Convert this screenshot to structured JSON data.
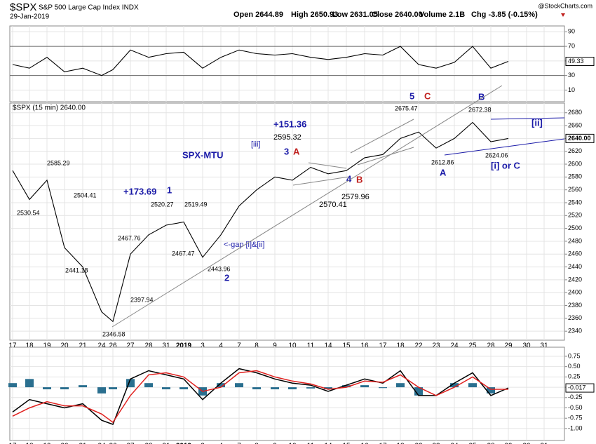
{
  "header": {
    "symbol": "$SPX",
    "name": "S&P 500 Large Cap Index INDX",
    "date": "29-Jan-2019",
    "quote": [
      "Open 2644.89",
      "High 2650.93",
      "Low 2631.05",
      "Close 2640.00",
      "Volume 2.1B",
      "Chg -3.85 (-0.15%)"
    ],
    "watermark": "@StockCharts.com"
  },
  "chart_data": [
    {
      "type": "line",
      "color": "#000000",
      "ylim": [
        -6,
        98
      ],
      "yticks": [
        10,
        30,
        50,
        70,
        90
      ],
      "grid": true,
      "values": [
        45,
        40,
        55,
        35,
        40,
        30,
        38,
        65,
        55,
        60,
        62,
        40,
        55,
        65,
        60,
        58,
        60,
        55,
        52,
        55,
        60,
        58,
        70,
        45,
        40,
        48,
        70,
        40,
        49.33,
        null,
        null
      ],
      "current": 49.33
    },
    {
      "type": "line",
      "label": "$SPX (15 min) 2640.00",
      "color": "#000000",
      "ylim": [
        2326,
        2695
      ],
      "yticks": [
        2340,
        2360,
        2380,
        2400,
        2420,
        2440,
        2460,
        2480,
        2500,
        2520,
        2540,
        2560,
        2580,
        2600,
        2620,
        2640,
        2660,
        2680
      ],
      "grid": true,
      "categories": [
        "17",
        "18",
        "19",
        "20",
        "21",
        "24",
        "26",
        "27",
        "28",
        "31",
        "2019",
        "3",
        "4",
        "7",
        "8",
        "9",
        "10",
        "11",
        "14",
        "15",
        "16",
        "17",
        "18",
        "22",
        "23",
        "24",
        "25",
        "28",
        "29",
        "30",
        "31"
      ],
      "values": [
        2590,
        2545,
        2575,
        2470,
        2440,
        2370,
        2355,
        2460,
        2490,
        2505,
        2510,
        2455,
        2490,
        2535,
        2560,
        2580,
        2575,
        2595,
        2585,
        2590,
        2610,
        2615,
        2640,
        2650,
        2625,
        2640,
        2665,
        2635,
        2640,
        null,
        null
      ],
      "current": {
        "value": 2640,
        "label": "2640.00"
      },
      "annotations": [
        {
          "text": "2585.29",
          "color": "#000000"
        },
        {
          "text": "2530.54",
          "color": "#000000"
        },
        {
          "text": "2504.41",
          "color": "#000000"
        },
        {
          "text": "2441.18",
          "color": "#000000"
        },
        {
          "text": "2467.76",
          "color": "#000000"
        },
        {
          "text": "2397.94",
          "color": "#000000"
        },
        {
          "text": "2346.58",
          "color": "#000000"
        },
        {
          "text": "2520.27",
          "color": "#000000"
        },
        {
          "text": "2519.49",
          "color": "#000000"
        },
        {
          "text": "2467.47",
          "color": "#000000"
        },
        {
          "text": "2443.96",
          "color": "#000000"
        },
        {
          "text": "+173.69",
          "color": "#1a1aa8"
        },
        {
          "text": "1",
          "color": "#1a1aa8"
        },
        {
          "text": "SPX-MTU",
          "color": "#1a1aa8"
        },
        {
          "text": "2",
          "color": "#1a1aa8"
        },
        {
          "text": "<-gap [i]&[ii]",
          "color": "#1a1aa8"
        },
        {
          "text": "[iii]",
          "color": "#1a1aa8"
        },
        {
          "text": "+151.36",
          "color": "#1a1aa8"
        },
        {
          "text": "2595.32",
          "color": "#000000"
        },
        {
          "text": "3",
          "color": "#1a1aa8"
        },
        {
          "text": "A",
          "color": "#c0201e"
        },
        {
          "text": "4",
          "color": "#1a1aa8"
        },
        {
          "text": "B",
          "color": "#c0201e"
        },
        {
          "text": "2570.41",
          "color": "#000000"
        },
        {
          "text": "2579.96",
          "color": "#000000"
        },
        {
          "text": "2675.47",
          "color": "#000000"
        },
        {
          "text": "5",
          "color": "#1a1aa8"
        },
        {
          "text": "C",
          "color": "#c0201e"
        },
        {
          "text": "2612.86",
          "color": "#000000"
        },
        {
          "text": "A",
          "color": "#1a1aa8"
        },
        {
          "text": "B",
          "color": "#1a1aa8"
        },
        {
          "text": "2672.38",
          "color": "#000000"
        },
        {
          "text": "[ii]",
          "color": "#1a1aa8"
        },
        {
          "text": "2624.06",
          "color": "#000000"
        },
        {
          "text": "[i] or C",
          "color": "#1a1aa8"
        }
      ]
    },
    {
      "type": "macd",
      "ylim": [
        -1.29,
        0.97
      ],
      "yticks": [
        {
          "value": 0.75,
          "label": "0.75"
        },
        {
          "value": 0.5,
          "label": "0.50"
        },
        {
          "value": 0.25,
          "label": "0.25"
        },
        {
          "value": 0,
          "label": "0.00"
        },
        -0.25,
        {
          "value": -0.5,
          "label": "-0.50"
        },
        -0.75,
        {
          "value": -1,
          "label": "-1.00"
        }
      ],
      "grid": true,
      "categories": [
        "17",
        "18",
        "19",
        "20",
        "21",
        "24",
        "26",
        "27",
        "28",
        "31",
        "2019",
        "3",
        "4",
        "7",
        "8",
        "9",
        "10",
        "11",
        "14",
        "15",
        "16",
        "17",
        "18",
        "22",
        "23",
        "24",
        "25",
        "28",
        "29",
        "30",
        "31"
      ],
      "series": [
        {
          "color": "#000000",
          "values": [
            -0.6,
            -0.3,
            -0.4,
            -0.5,
            -0.4,
            -0.8,
            -0.9,
            0.2,
            0.4,
            0.3,
            0.2,
            -0.3,
            0.1,
            0.45,
            0.35,
            0.2,
            0.1,
            0.05,
            -0.1,
            0.05,
            0.2,
            0.1,
            0.4,
            -0.2,
            -0.2,
            0.1,
            0.35,
            -0.2,
            -0.017,
            null,
            null
          ]
        },
        {
          "color": "#e0201e",
          "values": [
            -0.7,
            -0.5,
            -0.35,
            -0.45,
            -0.45,
            -0.65,
            -0.85,
            -0.2,
            0.3,
            0.35,
            0.25,
            -0.1,
            0.0,
            0.35,
            0.4,
            0.25,
            0.15,
            0.08,
            -0.05,
            0.0,
            0.15,
            0.12,
            0.3,
            0.0,
            -0.2,
            0.0,
            0.25,
            -0.05,
            -0.05,
            null,
            null
          ]
        }
      ],
      "histogram": {
        "color": "#2a6f8f",
        "values": [
          0.1,
          0.2,
          -0.05,
          -0.05,
          0.05,
          -0.15,
          -0.05,
          0.2,
          0.1,
          -0.05,
          -0.05,
          -0.2,
          0.1,
          0.1,
          -0.05,
          -0.05,
          -0.05,
          -0.03,
          -0.05,
          0.05,
          0.05,
          -0.02,
          0.1,
          -0.2,
          0.0,
          0.1,
          0.1,
          -0.15,
          0.0,
          null,
          null
        ]
      },
      "current": -0.017
    }
  ]
}
